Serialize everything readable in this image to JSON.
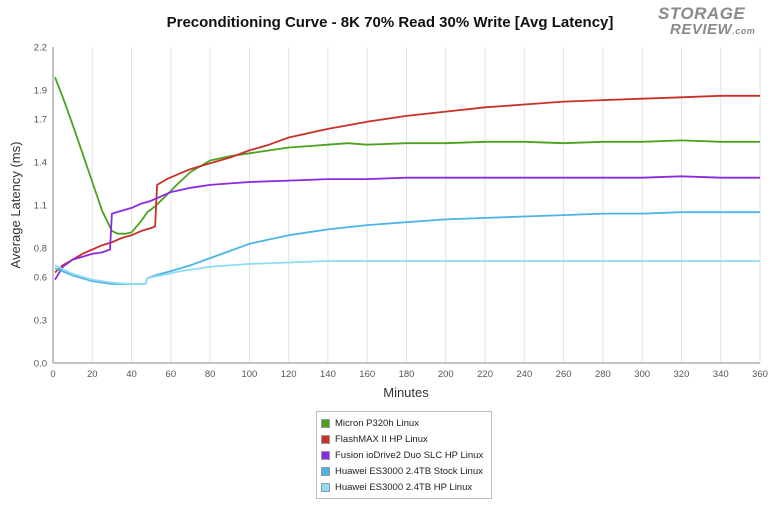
{
  "page": {
    "title": "Preconditioning Curve - 8K 70% Read 30% Write [Avg Latency]",
    "logo_line1": "STORAGE",
    "logo_line2": "REVIEW",
    "logo_suffix": ".com"
  },
  "chart_data": {
    "type": "line",
    "title": "Preconditioning Curve - 8K 70% Read 30% Write [Avg Latency]",
    "xlabel": "Minutes",
    "ylabel": "Average Latency (ms)",
    "xlim": [
      0,
      360
    ],
    "ylim": [
      0,
      2.2
    ],
    "xticks": [
      0,
      20,
      40,
      60,
      80,
      100,
      120,
      140,
      160,
      180,
      200,
      220,
      240,
      260,
      280,
      300,
      320,
      340,
      360
    ],
    "yticks": [
      0.0,
      0.3,
      0.6,
      0.8,
      1.1,
      1.4,
      1.7,
      1.9,
      2.2
    ],
    "yticklabels": [
      "0.0",
      "0.3",
      "0.6",
      "0.8",
      "1.1",
      "1.4",
      "1.7",
      "1.9",
      "2.2"
    ],
    "grid": "vertical",
    "legend_position": "bottom-center",
    "series": [
      {
        "name": "Micron P320h Linux",
        "color": "#4ca21e",
        "x": [
          1,
          5,
          10,
          15,
          20,
          25,
          30,
          33,
          37,
          40,
          45,
          48,
          52,
          58,
          63,
          70,
          80,
          90,
          100,
          110,
          120,
          130,
          140,
          150,
          160,
          180,
          200,
          220,
          240,
          260,
          280,
          300,
          320,
          340,
          360
        ],
        "y": [
          1.99,
          1.85,
          1.66,
          1.46,
          1.26,
          1.06,
          0.92,
          0.9,
          0.9,
          0.91,
          0.99,
          1.05,
          1.09,
          1.17,
          1.24,
          1.33,
          1.41,
          1.44,
          1.46,
          1.48,
          1.5,
          1.51,
          1.52,
          1.53,
          1.52,
          1.53,
          1.53,
          1.54,
          1.54,
          1.53,
          1.54,
          1.54,
          1.55,
          1.54,
          1.54
        ]
      },
      {
        "name": "FlashMAX II HP Linux",
        "color": "#c8302a",
        "x": [
          1,
          5,
          10,
          15,
          20,
          25,
          30,
          35,
          40,
          45,
          50,
          52,
          53,
          58,
          63,
          70,
          80,
          90,
          100,
          110,
          120,
          140,
          160,
          180,
          200,
          220,
          240,
          260,
          280,
          300,
          320,
          340,
          360
        ],
        "y": [
          0.63,
          0.68,
          0.72,
          0.76,
          0.79,
          0.82,
          0.84,
          0.87,
          0.89,
          0.92,
          0.94,
          0.95,
          1.24,
          1.28,
          1.31,
          1.35,
          1.39,
          1.43,
          1.48,
          1.52,
          1.57,
          1.63,
          1.68,
          1.72,
          1.75,
          1.78,
          1.8,
          1.82,
          1.83,
          1.84,
          1.85,
          1.86,
          1.86
        ]
      },
      {
        "name": "Fusion ioDrive2 Duo SLC HP Linux",
        "color": "#8a2be2",
        "x": [
          1,
          5,
          10,
          15,
          20,
          25,
          29,
          30,
          35,
          40,
          45,
          50,
          55,
          60,
          70,
          80,
          100,
          120,
          140,
          160,
          180,
          200,
          220,
          240,
          260,
          280,
          300,
          320,
          340,
          360
        ],
        "y": [
          0.58,
          0.67,
          0.72,
          0.74,
          0.76,
          0.77,
          0.79,
          1.04,
          1.06,
          1.08,
          1.11,
          1.13,
          1.16,
          1.19,
          1.22,
          1.24,
          1.26,
          1.27,
          1.28,
          1.28,
          1.29,
          1.29,
          1.29,
          1.29,
          1.29,
          1.29,
          1.29,
          1.3,
          1.29,
          1.29
        ]
      },
      {
        "name": "Huawei ES3000 2.4TB Stock Linux",
        "color": "#4fb3e6",
        "x": [
          1,
          10,
          20,
          30,
          40,
          47,
          48,
          52,
          60,
          70,
          80,
          90,
          100,
          110,
          120,
          130,
          140,
          160,
          180,
          200,
          220,
          240,
          260,
          280,
          300,
          320,
          340,
          360
        ],
        "y": [
          0.66,
          0.61,
          0.57,
          0.55,
          0.55,
          0.55,
          0.59,
          0.61,
          0.64,
          0.68,
          0.73,
          0.78,
          0.83,
          0.86,
          0.89,
          0.91,
          0.93,
          0.96,
          0.98,
          1.0,
          1.01,
          1.02,
          1.03,
          1.04,
          1.04,
          1.05,
          1.05,
          1.05
        ]
      },
      {
        "name": "Huawei ES3000 2.4TB HP Linux",
        "color": "#8fdcf5",
        "x": [
          1,
          10,
          20,
          30,
          40,
          47,
          48,
          55,
          65,
          80,
          100,
          120,
          140,
          160,
          200,
          240,
          280,
          320,
          360
        ],
        "y": [
          0.68,
          0.62,
          0.58,
          0.56,
          0.55,
          0.55,
          0.59,
          0.61,
          0.64,
          0.67,
          0.69,
          0.7,
          0.71,
          0.71,
          0.71,
          0.71,
          0.71,
          0.71,
          0.71
        ]
      }
    ]
  }
}
